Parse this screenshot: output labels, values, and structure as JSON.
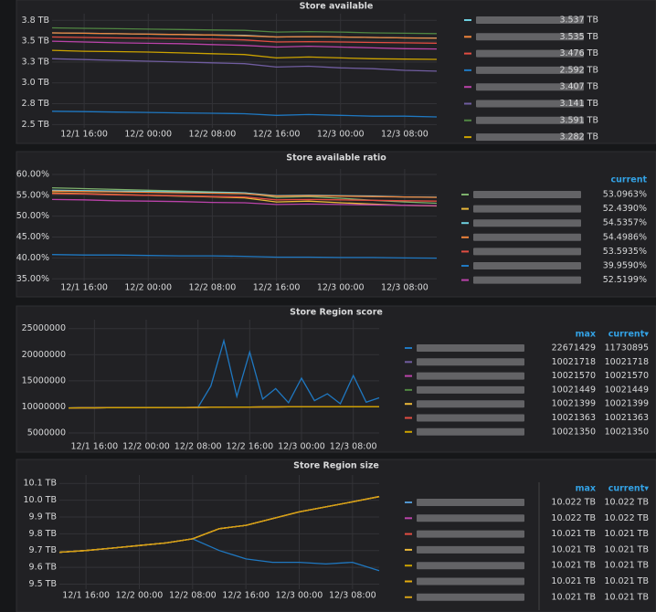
{
  "chart_data": [
    {
      "type": "line",
      "title": "Store available",
      "x": [
        "12/1 12:00",
        "12/1 16:00",
        "12/1 20:00",
        "12/2 00:00",
        "12/2 04:00",
        "12/2 08:00",
        "12/2 12:00",
        "12/2 16:00",
        "12/2 20:00",
        "12/3 00:00",
        "12/3 04:00",
        "12/3 08:00",
        "12/3 12:00"
      ],
      "xticks": [
        "12/1 16:00",
        "12/2 00:00",
        "12/2 08:00",
        "12/2 16:00",
        "12/3 00:00",
        "12/3 08:00"
      ],
      "ylim": [
        2.46,
        3.83
      ],
      "yticks": [
        {
          "value": 3.75,
          "label": "3.8 TB"
        },
        {
          "value": 3.5,
          "label": "3.5 TB"
        },
        {
          "value": 3.25,
          "label": "3.3 TB"
        },
        {
          "value": 3.0,
          "label": "3.0 TB"
        },
        {
          "value": 2.75,
          "label": "2.8 TB"
        },
        {
          "value": 2.5,
          "label": "2.5 TB"
        }
      ],
      "series": [
        {
          "color": "#6ed0e0",
          "values": [
            3.6,
            3.595,
            3.59,
            3.585,
            3.58,
            3.575,
            3.57,
            3.55,
            3.555,
            3.55,
            3.545,
            3.54,
            3.537
          ],
          "current": 3.537,
          "current_label": "3.537 TB"
        },
        {
          "color": "#ef843c",
          "values": [
            3.6,
            3.595,
            3.59,
            3.585,
            3.58,
            3.575,
            3.565,
            3.55,
            3.555,
            3.55,
            3.545,
            3.54,
            3.535
          ],
          "current": 3.535,
          "current_label": "3.535 TB"
        },
        {
          "color": "#e24d42",
          "values": [
            3.55,
            3.545,
            3.54,
            3.535,
            3.53,
            3.525,
            3.515,
            3.49,
            3.495,
            3.49,
            3.485,
            3.48,
            3.476
          ],
          "current": 3.476,
          "current_label": "3.476 TB"
        },
        {
          "color": "#1f78c1",
          "values": [
            2.66,
            2.655,
            2.65,
            2.645,
            2.64,
            2.635,
            2.63,
            2.61,
            2.62,
            2.61,
            2.6,
            2.6,
            2.592
          ],
          "current": 2.592,
          "current_label": "2.592 TB"
        },
        {
          "color": "#ba43a9",
          "values": [
            3.5,
            3.49,
            3.48,
            3.475,
            3.47,
            3.46,
            3.45,
            3.43,
            3.44,
            3.43,
            3.42,
            3.41,
            3.407
          ],
          "current": 3.407,
          "current_label": "3.407 TB"
        },
        {
          "color": "#705da0",
          "values": [
            3.29,
            3.28,
            3.27,
            3.26,
            3.25,
            3.24,
            3.23,
            3.19,
            3.2,
            3.18,
            3.17,
            3.15,
            3.141
          ],
          "current": 3.141,
          "current_label": "3.141 TB"
        },
        {
          "color": "#508642",
          "values": [
            3.66,
            3.655,
            3.65,
            3.645,
            3.64,
            3.635,
            3.63,
            3.61,
            3.615,
            3.61,
            3.6,
            3.595,
            3.591
          ],
          "current": 3.591,
          "current_label": "3.591 TB"
        },
        {
          "color": "#cca300",
          "values": [
            3.39,
            3.38,
            3.375,
            3.37,
            3.36,
            3.35,
            3.34,
            3.3,
            3.31,
            3.3,
            3.29,
            3.285,
            3.282
          ],
          "current": 3.282,
          "current_label": "3.282 TB"
        }
      ]
    },
    {
      "type": "line",
      "title": "Store available ratio",
      "x": [
        "12/1 12:00",
        "12/1 16:00",
        "12/1 20:00",
        "12/2 00:00",
        "12/2 04:00",
        "12/2 08:00",
        "12/2 12:00",
        "12/2 16:00",
        "12/2 20:00",
        "12/3 00:00",
        "12/3 04:00",
        "12/3 08:00",
        "12/3 12:00"
      ],
      "xticks": [
        "12/1 16:00",
        "12/2 00:00",
        "12/2 08:00",
        "12/2 16:00",
        "12/3 00:00",
        "12/3 08:00"
      ],
      "ylim": [
        34.4,
        61.3
      ],
      "yticks": [
        {
          "value": 60,
          "label": "60.00%"
        },
        {
          "value": 55,
          "label": "55.00%"
        },
        {
          "value": 50,
          "label": "50.00%"
        },
        {
          "value": 45,
          "label": "45.00%"
        },
        {
          "value": 40,
          "label": "40.00%"
        },
        {
          "value": 35,
          "label": "35.00%"
        }
      ],
      "legend_columns": [
        "current"
      ],
      "series": [
        {
          "color": "#7eb26d",
          "values": [
            56.8,
            56.6,
            56.4,
            56.2,
            56.0,
            55.8,
            55.6,
            54.5,
            54.7,
            54.3,
            53.8,
            53.4,
            53.0963
          ],
          "current": 53.0963,
          "current_label": "53.0963%"
        },
        {
          "color": "#eab839",
          "values": [
            55.6,
            55.4,
            55.2,
            55.0,
            54.8,
            54.6,
            54.4,
            53.4,
            53.6,
            53.2,
            52.9,
            52.6,
            52.439
          ],
          "current": 52.439,
          "current_label": "52.4390%"
        },
        {
          "color": "#6ed0e0",
          "values": [
            56.2,
            56.1,
            56.0,
            55.9,
            55.8,
            55.7,
            55.6,
            54.9,
            55.0,
            54.9,
            54.8,
            54.6,
            54.5357
          ],
          "current": 54.5357,
          "current_label": "54.5357%"
        },
        {
          "color": "#ef843c",
          "values": [
            56.0,
            55.9,
            55.8,
            55.7,
            55.6,
            55.5,
            55.4,
            54.8,
            54.9,
            54.8,
            54.7,
            54.6,
            54.4986
          ],
          "current": 54.4986,
          "current_label": "54.4986%"
        },
        {
          "color": "#e24d42",
          "values": [
            55.4,
            55.3,
            55.1,
            55.0,
            54.9,
            54.7,
            54.6,
            53.9,
            54.0,
            53.9,
            53.8,
            53.7,
            53.5935
          ],
          "current": 53.5935,
          "current_label": "53.5935%"
        },
        {
          "color": "#1f78c1",
          "values": [
            40.8,
            40.7,
            40.7,
            40.6,
            40.5,
            40.5,
            40.4,
            40.2,
            40.2,
            40.1,
            40.1,
            40.0,
            39.959
          ],
          "current": 39.959,
          "current_label": "39.9590%"
        },
        {
          "color": "#ba43a9",
          "values": [
            54.0,
            53.9,
            53.7,
            53.6,
            53.5,
            53.3,
            53.2,
            52.8,
            52.9,
            52.8,
            52.7,
            52.6,
            52.5199
          ],
          "current": 52.5199,
          "current_label": "52.5199%"
        }
      ]
    },
    {
      "type": "line",
      "title": "Store Region score",
      "x": [
        "12/1 12:00",
        "12/1 14:00",
        "12/1 16:00",
        "12/1 18:00",
        "12/1 20:00",
        "12/1 22:00",
        "12/2 00:00",
        "12/2 02:00",
        "12/2 04:00",
        "12/2 06:00",
        "12/2 08:00",
        "12/2 10:00",
        "12/2 12:00",
        "12/2 14:00",
        "12/2 16:00",
        "12/2 18:00",
        "12/2 20:00",
        "12/2 22:00",
        "12/3 00:00",
        "12/3 02:00",
        "12/3 04:00",
        "12/3 06:00",
        "12/3 08:00",
        "12/3 10:00",
        "12/3 12:00"
      ],
      "xticks": [
        "12/1 16:00",
        "12/2 00:00",
        "12/2 08:00",
        "12/2 16:00",
        "12/3 00:00",
        "12/3 08:00"
      ],
      "ylim": [
        3600000,
        26700000
      ],
      "yticks": [
        25000000,
        20000000,
        15000000,
        10000000,
        5000000
      ],
      "legend_columns": [
        "max",
        "current▾"
      ],
      "series": [
        {
          "color": "#1f78c1",
          "values": [
            9800000,
            9810000,
            9820000,
            9830000,
            9840000,
            9850000,
            9860000,
            9870000,
            9880000,
            9890000,
            9900000,
            14000000,
            22671429,
            12000000,
            20500000,
            11500000,
            13500000,
            10800000,
            15500000,
            11200000,
            12500000,
            10600000,
            16000000,
            10900000,
            11730895
          ],
          "max": 22671429,
          "current": 11730895
        },
        {
          "color": "#705da0",
          "values": [
            9800000,
            9810000,
            9820000,
            9830000,
            9840000,
            9850000,
            9860000,
            9870000,
            9880000,
            9890000,
            9900000,
            9920000,
            9940000,
            9960000,
            9970000,
            9980000,
            9990000,
            10000000,
            10005000,
            10010000,
            10012000,
            10015000,
            10018000,
            10020000,
            10021718
          ],
          "max": 10021718,
          "current": 10021718
        },
        {
          "color": "#ba43a9",
          "values": [
            9800000,
            9810000,
            9820000,
            9830000,
            9840000,
            9850000,
            9860000,
            9870000,
            9880000,
            9890000,
            9900000,
            9920000,
            9940000,
            9960000,
            9970000,
            9980000,
            9990000,
            10000000,
            10005000,
            10010000,
            10012000,
            10015000,
            10018000,
            10020000,
            10021570
          ],
          "max": 10021570,
          "current": 10021570
        },
        {
          "color": "#508642",
          "values": [
            9800000,
            9810000,
            9820000,
            9830000,
            9840000,
            9850000,
            9860000,
            9870000,
            9880000,
            9890000,
            9900000,
            9920000,
            9940000,
            9960000,
            9970000,
            9980000,
            9990000,
            10000000,
            10005000,
            10010000,
            10012000,
            10015000,
            10018000,
            10020000,
            10021449
          ],
          "max": 10021449,
          "current": 10021449
        },
        {
          "color": "#eab839",
          "values": [
            9800000,
            9810000,
            9820000,
            9830000,
            9840000,
            9850000,
            9860000,
            9870000,
            9880000,
            9890000,
            9900000,
            9920000,
            9940000,
            9960000,
            9970000,
            9980000,
            9990000,
            10000000,
            10005000,
            10010000,
            10012000,
            10015000,
            10018000,
            10020000,
            10021399
          ],
          "max": 10021399,
          "current": 10021399
        },
        {
          "color": "#e24d42",
          "values": [
            9800000,
            9810000,
            9820000,
            9830000,
            9840000,
            9850000,
            9860000,
            9870000,
            9880000,
            9890000,
            9900000,
            9920000,
            9940000,
            9960000,
            9970000,
            9980000,
            9990000,
            10000000,
            10005000,
            10010000,
            10012000,
            10015000,
            10018000,
            10020000,
            10021363
          ],
          "max": 10021363,
          "current": 10021363
        },
        {
          "color": "#cca300",
          "values": [
            9800000,
            9810000,
            9820000,
            9830000,
            9840000,
            9850000,
            9860000,
            9870000,
            9880000,
            9890000,
            9900000,
            9920000,
            9940000,
            9960000,
            9970000,
            9980000,
            9990000,
            10000000,
            10005000,
            10010000,
            10012000,
            10015000,
            10018000,
            10020000,
            10021350
          ],
          "max": 10021350,
          "current": 10021350
        }
      ]
    },
    {
      "type": "line",
      "title": "Store Region size",
      "x": [
        "12/1 12:00",
        "12/1 16:00",
        "12/1 20:00",
        "12/2 00:00",
        "12/2 04:00",
        "12/2 08:00",
        "12/2 12:00",
        "12/2 16:00",
        "12/2 20:00",
        "12/3 00:00",
        "12/3 04:00",
        "12/3 08:00",
        "12/3 12:00"
      ],
      "xticks": [
        "12/1 16:00",
        "12/2 00:00",
        "12/2 08:00",
        "12/2 16:00",
        "12/3 00:00",
        "12/3 08:00"
      ],
      "ylim": [
        9.47,
        10.15
      ],
      "yticks": [
        {
          "value": 10.1,
          "label": "10.1 TB"
        },
        {
          "value": 10.0,
          "label": "10.0 TB"
        },
        {
          "value": 9.9,
          "label": "9.9 TB"
        },
        {
          "value": 9.8,
          "label": "9.8 TB"
        },
        {
          "value": 9.7,
          "label": "9.7 TB"
        },
        {
          "value": 9.6,
          "label": "9.6 TB"
        },
        {
          "value": 9.5,
          "label": "9.5 TB"
        }
      ],
      "legend_columns": [
        "max",
        "current▾"
      ],
      "series": [
        {
          "color": "#1f78c1",
          "values": [
            9.69,
            9.7,
            9.715,
            9.73,
            9.745,
            9.77,
            9.7,
            9.65,
            9.63,
            9.63,
            9.62,
            9.63,
            9.58
          ]
        },
        {
          "color": "#5195ce",
          "values": [
            9.69,
            9.7,
            9.715,
            9.73,
            9.745,
            9.77,
            9.83,
            9.85,
            9.89,
            9.93,
            9.96,
            9.99,
            10.022
          ],
          "max": 10.022,
          "max_label": "10.022 TB",
          "current": 10.022,
          "current_label": "10.022 TB"
        },
        {
          "color": "#ba43a9",
          "values": [
            9.69,
            9.7,
            9.715,
            9.73,
            9.745,
            9.77,
            9.83,
            9.85,
            9.89,
            9.93,
            9.96,
            9.99,
            10.022
          ],
          "max": 10.022,
          "max_label": "10.022 TB",
          "current": 10.022,
          "current_label": "10.022 TB"
        },
        {
          "color": "#e24d42",
          "values": [
            9.69,
            9.7,
            9.715,
            9.73,
            9.745,
            9.77,
            9.83,
            9.85,
            9.89,
            9.93,
            9.96,
            9.99,
            10.021
          ],
          "max": 10.021,
          "max_label": "10.021 TB",
          "current": 10.021,
          "current_label": "10.021 TB"
        },
        {
          "color": "#eab839",
          "values": [
            9.69,
            9.7,
            9.715,
            9.73,
            9.745,
            9.77,
            9.83,
            9.85,
            9.89,
            9.93,
            9.96,
            9.99,
            10.021
          ],
          "max": 10.021,
          "max_label": "10.021 TB",
          "current": 10.021,
          "current_label": "10.021 TB"
        },
        {
          "color": "#cca300",
          "values": [
            9.69,
            9.7,
            9.715,
            9.73,
            9.745,
            9.77,
            9.83,
            9.85,
            9.89,
            9.93,
            9.96,
            9.99,
            10.021
          ],
          "max": 10.021,
          "max_label": "10.021 TB",
          "current": 10.021,
          "current_label": "10.021 TB"
        },
        {
          "color": "#e5ac0e",
          "values": [
            9.69,
            9.7,
            9.715,
            9.73,
            9.745,
            9.77,
            9.83,
            9.85,
            9.89,
            9.93,
            9.96,
            9.99,
            10.021
          ],
          "max": 10.021,
          "max_label": "10.021 TB",
          "current": 10.021,
          "current_label": "10.021 TB"
        },
        {
          "color": "#d4a017",
          "values": [
            9.69,
            9.7,
            9.715,
            9.73,
            9.745,
            9.77,
            9.83,
            9.85,
            9.89,
            9.93,
            9.96,
            9.99,
            10.021
          ],
          "max": 10.021,
          "max_label": "10.021 TB",
          "current": 10.021,
          "current_label": "10.021 TB"
        }
      ]
    }
  ]
}
